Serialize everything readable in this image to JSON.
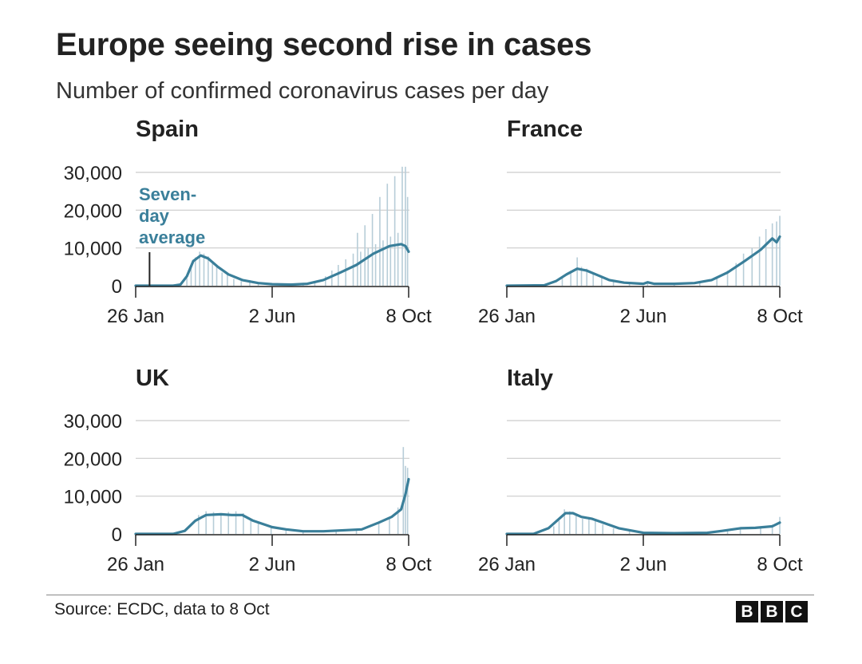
{
  "title": "Europe seeing second rise in cases",
  "subtitle": "Number of confirmed coronavirus cases per day",
  "source": "Source: ECDC, data to 8 Oct",
  "logo_letters": [
    "B",
    "B",
    "C"
  ],
  "colors": {
    "line": "#3a7f9a",
    "bars": "#b7cdd8",
    "grid": "#cccccc",
    "axis": "#222222",
    "annotation": "#3a7f9a"
  },
  "chart_data": [
    {
      "type": "line",
      "title": "Spain",
      "x_ticks": [
        "26 Jan",
        "2 Jun",
        "8 Oct"
      ],
      "y_ticks": [
        "30,000",
        "20,000",
        "10,000",
        "0"
      ],
      "ylim": [
        0,
        30000
      ],
      "annotation": {
        "lines": [
          "Seven-",
          "day",
          "average"
        ],
        "date": "8 Feb"
      },
      "series": [
        {
          "name": "Seven-day average",
          "kind": "line",
          "points": [
            [
              "26 Jan",
              0
            ],
            [
              "1 Mar",
              0
            ],
            [
              "8 Mar",
              300
            ],
            [
              "14 Mar",
              2500
            ],
            [
              "20 Mar",
              6500
            ],
            [
              "27 Mar",
              8000
            ],
            [
              "3 Apr",
              7200
            ],
            [
              "12 Apr",
              5000
            ],
            [
              "22 Apr",
              3000
            ],
            [
              "5 May",
              1500
            ],
            [
              "20 May",
              700
            ],
            [
              "2 Jun",
              400
            ],
            [
              "20 Jun",
              300
            ],
            [
              "5 Jul",
              500
            ],
            [
              "20 Jul",
              1500
            ],
            [
              "5 Aug",
              3500
            ],
            [
              "20 Aug",
              5500
            ],
            [
              "5 Sep",
              8500
            ],
            [
              "20 Sep",
              10500
            ],
            [
              "1 Oct",
              11000
            ],
            [
              "5 Oct",
              10500
            ],
            [
              "8 Oct",
              9000
            ]
          ]
        },
        {
          "name": "Daily cases",
          "kind": "bars",
          "points": [
            [
              "14 Mar",
              2000
            ],
            [
              "18 Mar",
              5000
            ],
            [
              "22 Mar",
              7500
            ],
            [
              "26 Mar",
              9000
            ],
            [
              "30 Mar",
              8500
            ],
            [
              "3 Apr",
              7800
            ],
            [
              "7 Apr",
              6000
            ],
            [
              "11 Apr",
              5000
            ],
            [
              "16 Apr",
              3500
            ],
            [
              "21 Apr",
              3000
            ],
            [
              "27 Apr",
              1800
            ],
            [
              "4 May",
              1200
            ],
            [
              "12 May",
              1500
            ],
            [
              "20 May",
              600
            ],
            [
              "1 Jul",
              600
            ],
            [
              "12 Jul",
              900
            ],
            [
              "22 Jul",
              2500
            ],
            [
              "28 Jul",
              4000
            ],
            [
              "3 Aug",
              5500
            ],
            [
              "10 Aug",
              7000
            ],
            [
              "17 Aug",
              8500
            ],
            [
              "21 Aug",
              14000
            ],
            [
              "24 Aug",
              9000
            ],
            [
              "28 Aug",
              16000
            ],
            [
              "31 Aug",
              10000
            ],
            [
              "4 Sep",
              19000
            ],
            [
              "7 Sep",
              11000
            ],
            [
              "11 Sep",
              23500
            ],
            [
              "14 Sep",
              12000
            ],
            [
              "18 Sep",
              27000
            ],
            [
              "21 Sep",
              13000
            ],
            [
              "25 Sep",
              29000
            ],
            [
              "28 Sep",
              14000
            ],
            [
              "2 Oct",
              31500
            ],
            [
              "5 Oct",
              31500
            ],
            [
              "7 Oct",
              23500
            ]
          ]
        }
      ]
    },
    {
      "type": "line",
      "title": "France",
      "x_ticks": [
        "26 Jan",
        "2 Jun",
        "8 Oct"
      ],
      "y_ticks": [],
      "ylim": [
        0,
        30000
      ],
      "series": [
        {
          "name": "Seven-day average",
          "kind": "line",
          "points": [
            [
              "26 Jan",
              0
            ],
            [
              "1 Mar",
              100
            ],
            [
              "12 Mar",
              1200
            ],
            [
              "22 Mar",
              3000
            ],
            [
              "1 Apr",
              4500
            ],
            [
              "10 Apr",
              4000
            ],
            [
              "20 Apr",
              2800
            ],
            [
              "1 May",
              1500
            ],
            [
              "15 May",
              800
            ],
            [
              "2 Jun",
              500
            ],
            [
              "6 Jun",
              900
            ],
            [
              "12 Jun",
              500
            ],
            [
              "1 Jul",
              500
            ],
            [
              "20 Jul",
              700
            ],
            [
              "5 Aug",
              1500
            ],
            [
              "20 Aug",
              3500
            ],
            [
              "5 Sep",
              6500
            ],
            [
              "20 Sep",
              9500
            ],
            [
              "1 Oct",
              12500
            ],
            [
              "5 Oct",
              11500
            ],
            [
              "8 Oct",
              13000
            ]
          ]
        },
        {
          "name": "Daily cases",
          "kind": "bars",
          "points": [
            [
              "18 Mar",
              2000
            ],
            [
              "26 Mar",
              4000
            ],
            [
              "1 Apr",
              7500
            ],
            [
              "5 Apr",
              5000
            ],
            [
              "10 Apr",
              4500
            ],
            [
              "16 Apr",
              3500
            ],
            [
              "24 Apr",
              2500
            ],
            [
              "5 May",
              1200
            ],
            [
              "20 May",
              800
            ],
            [
              "6 Jun",
              1100
            ],
            [
              "1 Jul",
              700
            ],
            [
              "25 Jul",
              1000
            ],
            [
              "10 Aug",
              2000
            ],
            [
              "20 Aug",
              4000
            ],
            [
              "28 Aug",
              6000
            ],
            [
              "4 Sep",
              8500
            ],
            [
              "12 Sep",
              10000
            ],
            [
              "19 Sep",
              13000
            ],
            [
              "25 Sep",
              15000
            ],
            [
              "1 Oct",
              16500
            ],
            [
              "5 Oct",
              17000
            ],
            [
              "8 Oct",
              18500
            ]
          ]
        }
      ]
    },
    {
      "type": "line",
      "title": "UK",
      "x_ticks": [
        "26 Jan",
        "2 Jun",
        "8 Oct"
      ],
      "y_ticks": [
        "30,000",
        "20,000",
        "10,000",
        "0"
      ],
      "ylim": [
        0,
        30000
      ],
      "series": [
        {
          "name": "Seven-day average",
          "kind": "line",
          "points": [
            [
              "26 Jan",
              0
            ],
            [
              "1 Mar",
              0
            ],
            [
              "12 Mar",
              800
            ],
            [
              "22 Mar",
              3500
            ],
            [
              "1 Apr",
              5000
            ],
            [
              "15 Apr",
              5200
            ],
            [
              "25 Apr",
              5000
            ],
            [
              "5 May",
              5000
            ],
            [
              "15 May",
              3500
            ],
            [
              "2 Jun",
              1800
            ],
            [
              "15 Jun",
              1200
            ],
            [
              "1 Jul",
              700
            ],
            [
              "20 Jul",
              700
            ],
            [
              "10 Aug",
              1000
            ],
            [
              "25 Aug",
              1200
            ],
            [
              "10 Sep",
              3000
            ],
            [
              "22 Sep",
              4500
            ],
            [
              "1 Oct",
              6500
            ],
            [
              "5 Oct",
              10500
            ],
            [
              "8 Oct",
              14500
            ]
          ]
        },
        {
          "name": "Daily cases",
          "kind": "bars",
          "points": [
            [
              "25 Mar",
              5000
            ],
            [
              "1 Apr",
              6000
            ],
            [
              "8 Apr",
              5800
            ],
            [
              "15 Apr",
              5500
            ],
            [
              "22 Apr",
              5800
            ],
            [
              "29 Apr",
              6000
            ],
            [
              "6 May",
              5500
            ],
            [
              "13 May",
              3500
            ],
            [
              "20 May",
              2800
            ],
            [
              "1 Jun",
              2000
            ],
            [
              "15 Jun",
              1300
            ],
            [
              "1 Jul",
              800
            ],
            [
              "1 Aug",
              900
            ],
            [
              "20 Aug",
              1200
            ],
            [
              "10 Sep",
              3200
            ],
            [
              "20 Sep",
              4500
            ],
            [
              "28 Sep",
              7000
            ],
            [
              "3 Oct",
              23000
            ],
            [
              "5 Oct",
              18000
            ],
            [
              "7 Oct",
              17500
            ]
          ]
        }
      ]
    },
    {
      "type": "line",
      "title": "Italy",
      "x_ticks": [
        "26 Jan",
        "2 Jun",
        "8 Oct"
      ],
      "y_ticks": [],
      "ylim": [
        0,
        30000
      ],
      "series": [
        {
          "name": "Seven-day average",
          "kind": "line",
          "points": [
            [
              "26 Jan",
              0
            ],
            [
              "20 Feb",
              0
            ],
            [
              "5 Mar",
              1500
            ],
            [
              "15 Mar",
              4000
            ],
            [
              "21 Mar",
              5500
            ],
            [
              "28 Mar",
              5500
            ],
            [
              "5 Apr",
              4500
            ],
            [
              "15 Apr",
              4000
            ],
            [
              "25 Apr",
              3000
            ],
            [
              "10 May",
              1500
            ],
            [
              "2 Jun",
              300
            ],
            [
              "1 Jul",
              200
            ],
            [
              "1 Aug",
              300
            ],
            [
              "15 Aug",
              800
            ],
            [
              "1 Sep",
              1500
            ],
            [
              "15 Sep",
              1600
            ],
            [
              "1 Oct",
              2000
            ],
            [
              "8 Oct",
              3000
            ]
          ]
        },
        {
          "name": "Daily cases",
          "kind": "bars",
          "points": [
            [
              "10 Mar",
              2000
            ],
            [
              "15 Mar",
              3500
            ],
            [
              "20 Mar",
              6500
            ],
            [
              "25 Mar",
              6000
            ],
            [
              "31 Mar",
              5000
            ],
            [
              "6 Apr",
              4000
            ],
            [
              "12 Apr",
              4500
            ],
            [
              "18 Apr",
              3500
            ],
            [
              "25 Apr",
              2500
            ],
            [
              "5 May",
              1500
            ],
            [
              "20 May",
              800
            ],
            [
              "10 Jul",
              300
            ],
            [
              "20 Aug",
              900
            ],
            [
              "1 Sep",
              1500
            ],
            [
              "20 Sep",
              1800
            ],
            [
              "1 Oct",
              2500
            ],
            [
              "8 Oct",
              4500
            ]
          ]
        }
      ]
    }
  ]
}
